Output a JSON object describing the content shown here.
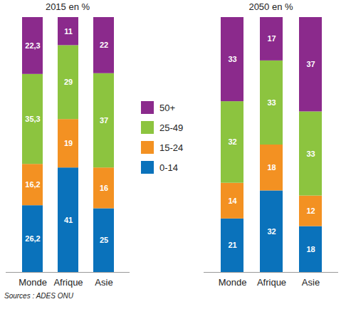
{
  "chart_data": [
    {
      "type": "bar",
      "title": "2015 en %",
      "stacked": true,
      "data_labels": true,
      "tick_labels": "x",
      "legend": "right",
      "caption": "Sources : ADES ONU",
      "categories": [
        "Monde",
        "Afrique",
        "Asie"
      ],
      "ylim": [
        0,
        100
      ],
      "series": [
        {
          "name": "0-14",
          "color": "#0a72bb",
          "values": [
            26.2,
            41,
            25
          ],
          "value_labels": [
            "26,2",
            "41",
            "25"
          ]
        },
        {
          "name": "15-24",
          "color": "#f39122",
          "values": [
            16.2,
            19,
            16
          ],
          "value_labels": [
            "16,2",
            "19",
            "16"
          ]
        },
        {
          "name": "25-49",
          "color": "#8cc43f",
          "values": [
            35.3,
            29,
            37
          ],
          "value_labels": [
            "35,3",
            "29",
            "37"
          ]
        },
        {
          "name": "50+",
          "color": "#8b2a8c",
          "values": [
            22.3,
            11,
            22
          ],
          "value_labels": [
            "22,3",
            "11",
            "22"
          ]
        }
      ]
    },
    {
      "type": "bar",
      "title": "2050 en %",
      "stacked": true,
      "data_labels": true,
      "tick_labels": "x",
      "categories": [
        "Monde",
        "Afrique",
        "Asie"
      ],
      "ylim": [
        0,
        100
      ],
      "series": [
        {
          "name": "0-14",
          "color": "#0a72bb",
          "values": [
            21,
            32,
            18
          ]
        },
        {
          "name": "15-24",
          "color": "#f39122",
          "values": [
            14,
            18,
            12
          ]
        },
        {
          "name": "25-49",
          "color": "#8cc43f",
          "values": [
            32,
            33,
            33
          ]
        },
        {
          "name": "50+",
          "color": "#8b2a8c",
          "values": [
            33,
            17,
            37
          ]
        }
      ]
    }
  ]
}
